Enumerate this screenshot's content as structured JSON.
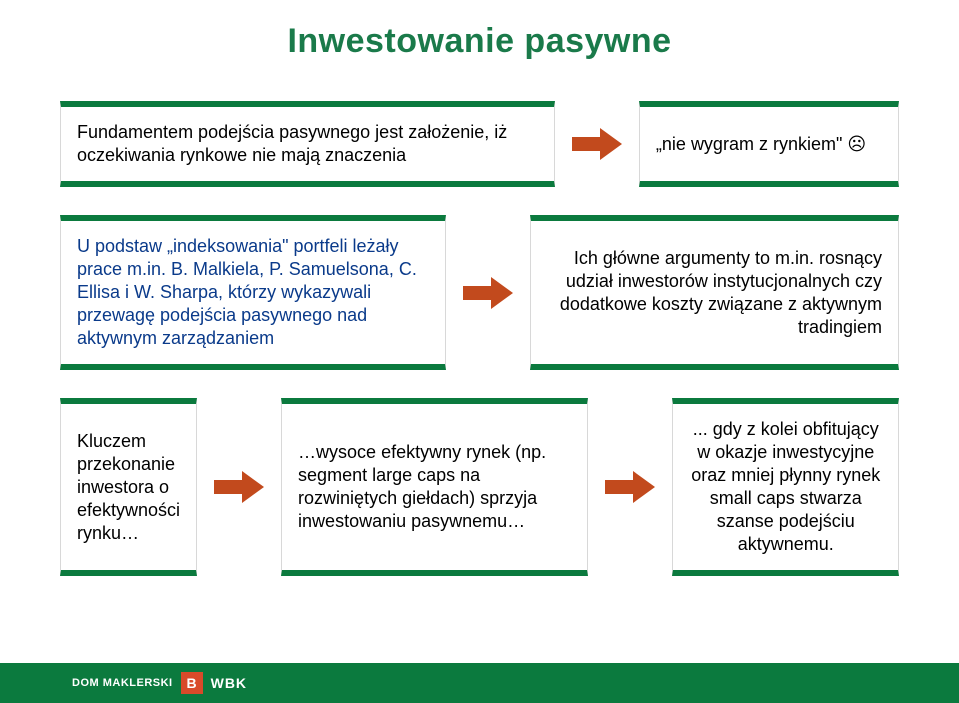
{
  "title": "Inwestowanie pasywne",
  "row1": {
    "left": "Fundamentem podejścia pasywnego jest założenie, iż oczekiwania rynkowe nie mają znaczenia",
    "right": "„nie wygram z rynkiem\" ☹"
  },
  "row2": {
    "left": "U podstaw „indeksowania\" portfeli leżały prace m.in. B. Malkiela, P. Samuelsona, C. Ellisa i W. Sharpa, którzy wykazywali przewagę podejścia pasywnego nad aktywnym zarządzaniem",
    "right": "Ich główne argumenty to m.in. rosnący udział inwestorów instytucjonalnych czy dodatkowe koszty związane z aktywnym tradingiem"
  },
  "row3": {
    "a": "Kluczem przekonanie inwestora o efektywności rynku…",
    "b": "…wysoce efektywny rynek (np. segment large caps na rozwiniętych giełdach) sprzyja inwestowaniu pasywnemu…",
    "c": "... gdy z kolei obfitujący w okazje inwestycyjne oraz mniej płynny rynek small caps stwarza szanse podejściu aktywnemu."
  },
  "footer": {
    "brand": "DOM MAKLERSKI",
    "logo_letter": "B",
    "wbk": "WBK"
  },
  "colors": {
    "title": "#1a7a4a",
    "border_green": "#0b7a3e",
    "blue_text": "#0a3a8a",
    "arrow": "#c24a1d",
    "footer_bg": "#0b7a3e",
    "logo_bg": "#d94a2a"
  }
}
